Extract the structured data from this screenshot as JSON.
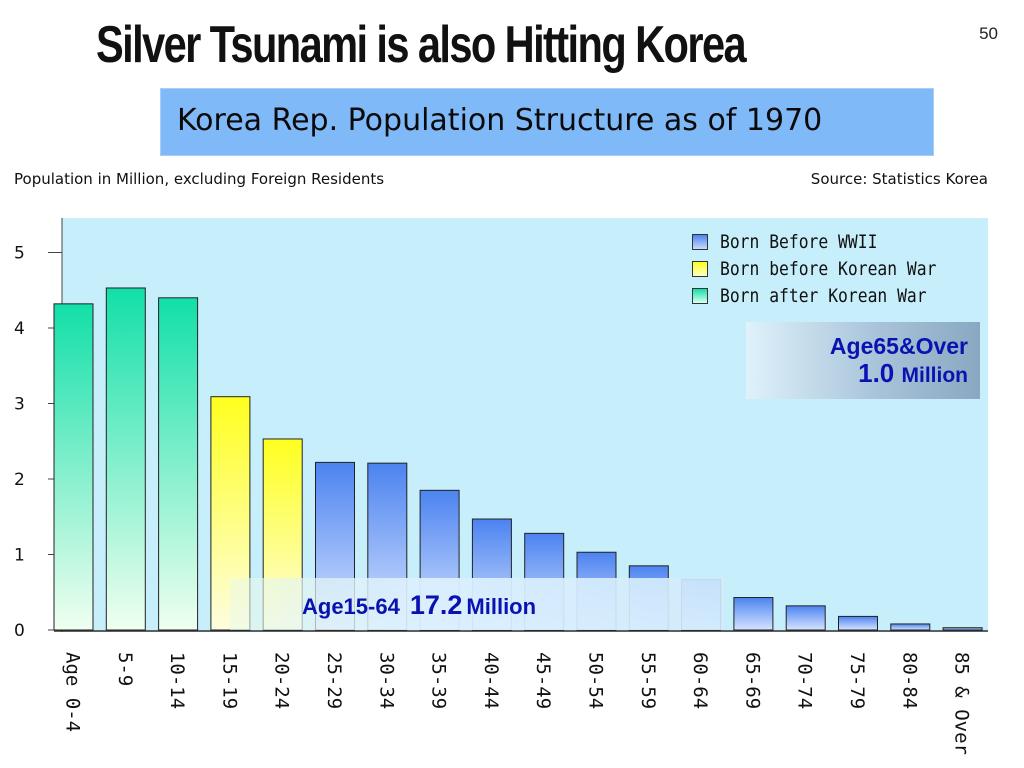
{
  "slide": {
    "title": "Silver Tsunami is also Hitting Korea",
    "page_number": "50",
    "banner": "Korea Rep. Population Structure as of 1970",
    "unit_note": "Population in Million, excluding Foreign Residents",
    "source_note": "Source: Statistics Korea"
  },
  "callouts": {
    "age65_label": "Age65&Over",
    "age65_value": "1.0",
    "age65_unit": "Million",
    "age1564_label": "Age15-64",
    "age1564_value": "17.2",
    "age1564_unit": "Million"
  },
  "colors": {
    "plot_bg": "#c6eefb",
    "born_after_korean_war": "#1fe0b0",
    "born_before_korean_war": "#ffff2a",
    "born_before_wwii": "#5b8ff2",
    "callout_text": "#0a12b0"
  },
  "chart_data": {
    "type": "bar",
    "categories": [
      "Age 0-4",
      "5-9",
      "10-14",
      "15-19",
      "20-24",
      "25-29",
      "30-34",
      "35-39",
      "40-44",
      "45-49",
      "50-54",
      "55-59",
      "60-64",
      "65-69",
      "70-74",
      "75-79",
      "80-84",
      "85 & Over"
    ],
    "values": [
      4.32,
      4.53,
      4.4,
      3.09,
      2.53,
      2.22,
      2.21,
      1.85,
      1.47,
      1.28,
      1.03,
      0.85,
      0.67,
      0.43,
      0.32,
      0.18,
      0.08,
      0.03
    ],
    "cohort": [
      "after",
      "after",
      "after",
      "korean",
      "korean",
      "wwii",
      "wwii",
      "wwii",
      "wwii",
      "wwii",
      "wwii",
      "wwii",
      "wwii",
      "wwii",
      "wwii",
      "wwii",
      "wwii",
      "wwii"
    ],
    "ylim": [
      0,
      5.5
    ],
    "yticks": [
      0,
      1,
      2,
      3,
      4,
      5
    ],
    "grid": false,
    "legend_position": "top-right",
    "legend": [
      {
        "name": "Born Before WWII",
        "key": "wwii"
      },
      {
        "name": "Born before Korean War",
        "key": "korean"
      },
      {
        "name": "Born after Korean War",
        "key": "after"
      }
    ]
  }
}
